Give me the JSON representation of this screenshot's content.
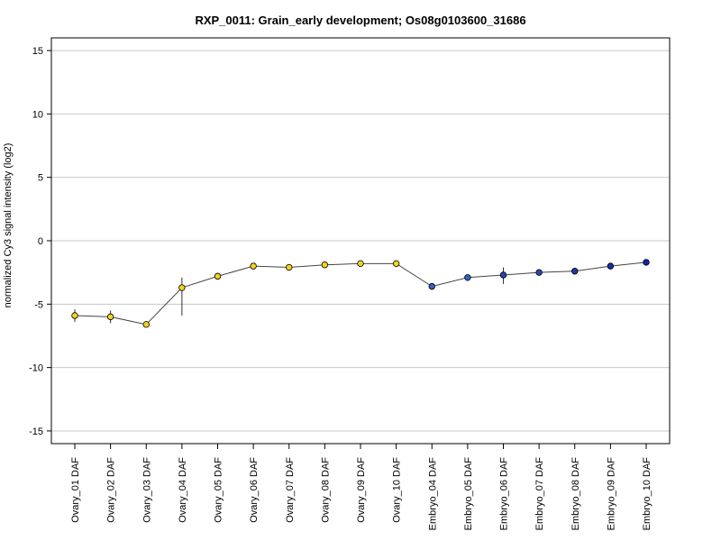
{
  "chart_data": {
    "type": "line",
    "title": "RXP_0011: Grain_early development; Os08g0103600_31686",
    "xlabel": "",
    "ylabel": "normalized Cy3 signal intensity (log2)",
    "ylim": [
      -16,
      16
    ],
    "yticks": [
      -15,
      -10,
      -5,
      0,
      5,
      10,
      15
    ],
    "grid": "horizontal",
    "categories": [
      "Ovary_01 DAF",
      "Ovary_02 DAF",
      "Ovary_03 DAF",
      "Ovary_04 DAF",
      "Ovary_05 DAF",
      "Ovary_06 DAF",
      "Ovary_07 DAF",
      "Ovary_08 DAF",
      "Ovary_09 DAF",
      "Ovary_10 DAF",
      "Embryo_04 DAF",
      "Embryo_05 DAF",
      "Embryo_06 DAF",
      "Embryo_07 DAF",
      "Embryo_08 DAF",
      "Embryo_09 DAF",
      "Embryo_10 DAF"
    ],
    "series": [
      {
        "values": [
          -5.9,
          -6.0,
          -6.6,
          -3.7,
          -2.8,
          -2.0,
          -2.1,
          -1.9,
          -1.8,
          -1.8,
          -3.6,
          -2.9,
          -2.7,
          -2.5,
          -2.4,
          -2.0,
          -1.7
        ],
        "err_low": [
          -6.4,
          -6.5,
          -6.6,
          -5.9,
          -3.0,
          -2.0,
          -2.1,
          -1.9,
          -1.8,
          -1.8,
          -3.6,
          -2.9,
          -3.4,
          -2.5,
          -2.4,
          -2.0,
          -1.7
        ],
        "err_high": [
          -5.4,
          -5.5,
          -6.6,
          -2.9,
          -2.6,
          -2.0,
          -2.1,
          -1.9,
          -1.8,
          -1.8,
          -3.6,
          -2.9,
          -2.1,
          -2.5,
          -2.4,
          -2.0,
          -1.7
        ],
        "colors": [
          "#f2d21f",
          "#f2d21f",
          "#f2d21f",
          "#f2d21f",
          "#f2d21f",
          "#f2d21f",
          "#f2d21f",
          "#f2d21f",
          "#f2d21f",
          "#f2d21f",
          "#2f63c4",
          "#2f63c4",
          "#2447b3",
          "#2447b3",
          "#1f3aa8",
          "#1b2ea0",
          "#172699"
        ]
      }
    ],
    "line_color": "#444444",
    "grid_color": "#c8c8c8"
  }
}
